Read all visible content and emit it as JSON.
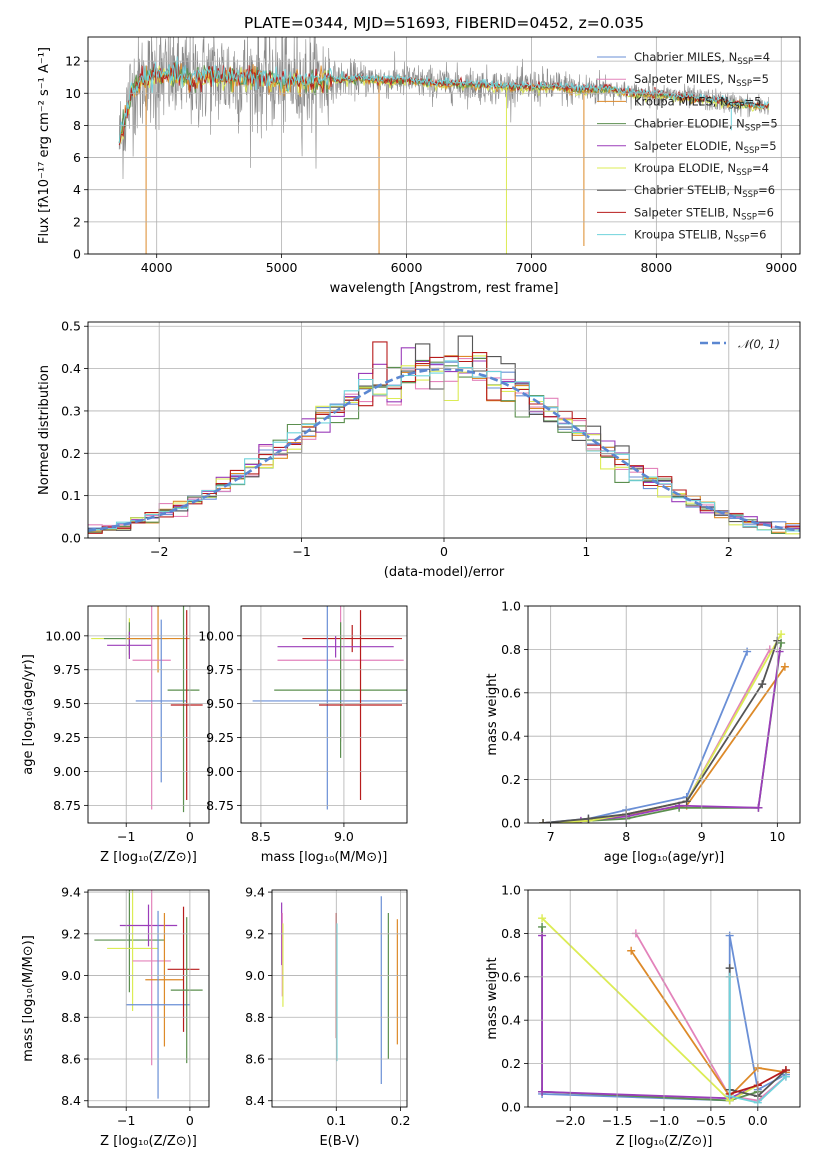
{
  "colors": {
    "series": [
      "#6a8fd6",
      "#e383bb",
      "#dd8a29",
      "#5b8f4f",
      "#9b3dba",
      "#dcec55",
      "#555555",
      "#b71c1c",
      "#6fd3dc"
    ],
    "gaussian": "#5b87d1",
    "grid": "#b0b0b0"
  },
  "chart_data": [
    {
      "id": "spectrum",
      "type": "line",
      "title": "PLATE=0344, MJD=51693, FIBERID=0452, z=0.035",
      "xlabel": "wavelength [Angstrom, rest frame]",
      "ylabel": "Flux [fλ10⁻¹⁷ erg cm⁻² s⁻¹ A⁻¹]",
      "xlim": [
        3450,
        9150
      ],
      "ylim": [
        0,
        13.5
      ],
      "xticks": [
        "4000",
        "5000",
        "6000",
        "7000",
        "8000",
        "9000"
      ],
      "yticks": [
        "0",
        "2",
        "4",
        "6",
        "8",
        "10",
        "12"
      ],
      "legend_position": "upper-right",
      "legend": [
        {
          "label": "Chabrier MILES, N",
          "sub": "SSP",
          "suffix": "=4"
        },
        {
          "label": "Salpeter MILES, N",
          "sub": "SSP",
          "suffix": "=5"
        },
        {
          "label": "Kroupa MILES, N",
          "sub": "SSP",
          "suffix": "=5"
        },
        {
          "label": "Chabrier ELODIE, N",
          "sub": "SSP",
          "suffix": "=5"
        },
        {
          "label": "Salpeter ELODIE, N",
          "sub": "SSP",
          "suffix": "=5"
        },
        {
          "label": "Kroupa ELODIE, N",
          "sub": "SSP",
          "suffix": "=4"
        },
        {
          "label": "Chabrier STELIB, N",
          "sub": "SSP",
          "suffix": "=6"
        },
        {
          "label": "Salpeter STELIB, N",
          "sub": "SSP",
          "suffix": "=6"
        },
        {
          "label": "Kroupa STELIB, N",
          "sub": "SSP",
          "suffix": "=6"
        }
      ],
      "continuum": {
        "x": [
          3700,
          3800,
          3900,
          4000,
          4100,
          4200,
          4300,
          4400,
          4600,
          4800,
          5000,
          5200,
          5400,
          5600,
          5800,
          6000,
          6200,
          6400,
          6600,
          6800,
          7000,
          7200,
          7400,
          7600,
          7800,
          8000,
          8200,
          8400,
          8600,
          8800
        ],
        "y": [
          7.0,
          10.2,
          10.8,
          11.0,
          11.1,
          11.0,
          10.8,
          11.1,
          11.0,
          10.9,
          10.8,
          10.7,
          10.8,
          10.9,
          10.8,
          10.8,
          10.6,
          10.6,
          10.5,
          10.4,
          10.4,
          10.4,
          10.2,
          10.3,
          10.0,
          9.9,
          9.8,
          9.6,
          9.4,
          9.2
        ]
      },
      "spikes": [
        {
          "x": 3915,
          "y": 0.0,
          "series": 2
        },
        {
          "x": 5780,
          "y": 0.0,
          "series": 2
        },
        {
          "x": 6800,
          "y": 0.0,
          "series": 5
        },
        {
          "x": 7420,
          "y": 0.5,
          "series": 2
        },
        {
          "x": 8600,
          "y": 7.7,
          "series": 8
        }
      ]
    },
    {
      "id": "residuals",
      "type": "histogram",
      "xlabel": "(data-model)/error",
      "ylabel": "Normed distribution",
      "xlim": [
        -2.5,
        2.5
      ],
      "ylim": [
        0,
        0.51
      ],
      "xticks": [
        "−2",
        "−1",
        "0",
        "1",
        "2"
      ],
      "yticks": [
        "0.0",
        "0.1",
        "0.2",
        "0.3",
        "0.4",
        "0.5"
      ],
      "bin_width": 0.1,
      "reference_label": "𝒩(0, 1)",
      "legend_position": "upper-right"
    },
    {
      "id": "age-vs-z",
      "type": "errorbar",
      "xlabel": "Z [log₁₀(Z/Z⊙)]",
      "ylabel": "age  [log₁₀(age/yr)]",
      "xlim": [
        -1.6,
        0.3
      ],
      "ylim": [
        8.62,
        10.22
      ],
      "xticks": [
        "−1",
        "0"
      ],
      "yticks": [
        "8.75",
        "9.00",
        "9.25",
        "9.50",
        "9.75",
        "10.00"
      ],
      "points": [
        {
          "x": -0.95,
          "y": 9.98,
          "xerr": 0.6,
          "yerr": 0.15,
          "series": 5
        },
        {
          "x": -0.95,
          "y": 9.98,
          "xerr": 0.4,
          "yerr": 0.12,
          "series": 3
        },
        {
          "x": -0.95,
          "y": 9.93,
          "xerr": 0.35,
          "yerr": 0.1,
          "series": 4
        },
        {
          "x": -0.5,
          "y": 9.98,
          "xerr": 0.5,
          "yerr": 0.25,
          "series": 2
        },
        {
          "x": -0.6,
          "y": 9.82,
          "xerr": 0.3,
          "yerr": 1.1,
          "series": 1
        },
        {
          "x": -0.45,
          "y": 9.52,
          "xerr": 0.4,
          "yerr": 0.6,
          "series": 0
        },
        {
          "x": -0.1,
          "y": 9.6,
          "xerr": 0.25,
          "yerr": 0.9,
          "series": 3
        },
        {
          "x": -0.05,
          "y": 9.49,
          "xerr": 0.25,
          "yerr": 0.7,
          "series": 7
        }
      ]
    },
    {
      "id": "age-vs-mass",
      "type": "errorbar",
      "xlabel": "mass [log₁₀(M/M⊙)]",
      "ylabel": "",
      "xlim": [
        8.38,
        9.38
      ],
      "ylim": [
        8.62,
        10.22
      ],
      "xticks": [
        "8.5",
        "9.0"
      ],
      "yticks": [
        "8.75",
        "9.00",
        "9.25",
        "9.50",
        "9.75",
        "10.00"
      ],
      "points": [
        {
          "x": 9.05,
          "y": 9.98,
          "xerr": 0.3,
          "yerr": 0.1,
          "series": 7
        },
        {
          "x": 8.95,
          "y": 9.92,
          "xerr": 0.35,
          "yerr": 0.08,
          "series": 4
        },
        {
          "x": 8.98,
          "y": 9.82,
          "xerr": 0.38,
          "yerr": 0.6,
          "series": 1
        },
        {
          "x": 8.98,
          "y": 9.6,
          "xerr": 0.4,
          "yerr": 0.5,
          "series": 3
        },
        {
          "x": 8.9,
          "y": 9.52,
          "xerr": 0.45,
          "yerr": 0.8,
          "series": 0
        },
        {
          "x": 9.1,
          "y": 9.49,
          "xerr": 0.25,
          "yerr": 0.7,
          "series": 7
        }
      ]
    },
    {
      "id": "mass-weight-vs-age",
      "type": "line",
      "xlabel": "age  [log₁₀(age/yr)]",
      "ylabel": "mass weight",
      "xlim": [
        6.7,
        10.3
      ],
      "ylim": [
        0,
        1.0
      ],
      "xticks": [
        "7",
        "8",
        "9",
        "10"
      ],
      "yticks": [
        "0.0",
        "0.2",
        "0.4",
        "0.6",
        "0.8",
        "1.0"
      ],
      "series": [
        {
          "x": [
            6.9,
            7.5,
            8.0,
            8.8,
            9.6
          ],
          "y": [
            0.0,
            0.02,
            0.06,
            0.12,
            0.79
          ],
          "color": 0
        },
        {
          "x": [
            6.9,
            7.5,
            8.0,
            8.8,
            9.9
          ],
          "y": [
            0.0,
            0.01,
            0.04,
            0.1,
            0.8
          ],
          "color": 1
        },
        {
          "x": [
            6.9,
            7.5,
            8.0,
            8.8,
            10.1
          ],
          "y": [
            0.0,
            0.01,
            0.04,
            0.08,
            0.72
          ],
          "color": 2
        },
        {
          "x": [
            6.9,
            7.5,
            8.0,
            8.7,
            9.75,
            10.05
          ],
          "y": [
            0.0,
            0.01,
            0.02,
            0.07,
            0.07,
            0.83
          ],
          "color": 3
        },
        {
          "x": [
            6.9,
            7.4,
            8.0,
            8.7,
            9.75,
            10.03
          ],
          "y": [
            0.0,
            0.01,
            0.03,
            0.08,
            0.07,
            0.79
          ],
          "color": 4
        },
        {
          "x": [
            6.9,
            7.5,
            8.0,
            8.8,
            10.05
          ],
          "y": [
            0.0,
            0.01,
            0.04,
            0.1,
            0.87
          ],
          "color": 5
        },
        {
          "x": [
            6.9,
            7.5,
            8.0,
            8.8,
            9.8,
            10.0
          ],
          "y": [
            0.0,
            0.02,
            0.04,
            0.1,
            0.64,
            0.84
          ],
          "color": 6
        }
      ]
    },
    {
      "id": "mass-vs-z",
      "type": "errorbar",
      "xlabel": "Z [log₁₀(Z/Z⊙)]",
      "ylabel": "mass [log₁₀(M/M⊙)]",
      "xlim": [
        -1.6,
        0.3
      ],
      "ylim": [
        8.37,
        9.41
      ],
      "xticks": [
        "−1",
        "0"
      ],
      "yticks": [
        "8.4",
        "8.6",
        "8.8",
        "9.0",
        "9.2",
        "9.4"
      ],
      "points": [
        {
          "x": -0.95,
          "y": 9.17,
          "xerr": 0.55,
          "yerr": 0.25,
          "series": 3
        },
        {
          "x": -0.9,
          "y": 9.13,
          "xerr": 0.4,
          "yerr": 0.3,
          "series": 5
        },
        {
          "x": -0.65,
          "y": 9.24,
          "xerr": 0.45,
          "yerr": 0.1,
          "series": 4
        },
        {
          "x": -0.6,
          "y": 9.07,
          "xerr": 0.3,
          "yerr": 0.5,
          "series": 1
        },
        {
          "x": -0.4,
          "y": 8.98,
          "xerr": 0.3,
          "yerr": 0.32,
          "series": 2
        },
        {
          "x": -0.5,
          "y": 8.86,
          "xerr": 0.5,
          "yerr": 0.45,
          "series": 0
        },
        {
          "x": -0.1,
          "y": 9.03,
          "xerr": 0.25,
          "yerr": 0.3,
          "series": 7
        },
        {
          "x": -0.05,
          "y": 8.93,
          "xerr": 0.25,
          "yerr": 0.35,
          "series": 3
        }
      ]
    },
    {
      "id": "mass-vs-ebv",
      "type": "errorbar",
      "xlabel": "E(B-V)",
      "ylabel": "",
      "xlim": [
        0.0,
        0.21
      ],
      "ylim": [
        8.37,
        9.41
      ],
      "xticks": [
        "0.1",
        "0.2"
      ],
      "yticks": [
        "8.4",
        "8.6",
        "8.8",
        "9.0",
        "9.2",
        "9.4"
      ],
      "points": [
        {
          "x": 0.015,
          "y": 9.2,
          "yerr": 0.15,
          "series": 4
        },
        {
          "x": 0.016,
          "y": 9.1,
          "yerr": 0.2,
          "series": 1
        },
        {
          "x": 0.017,
          "y": 9.05,
          "yerr": 0.2,
          "series": 5
        },
        {
          "x": 0.1,
          "y": 9.0,
          "yerr": 0.3,
          "series": 7
        },
        {
          "x": 0.101,
          "y": 8.92,
          "yerr": 0.33,
          "series": 8
        },
        {
          "x": 0.17,
          "y": 8.93,
          "yerr": 0.45,
          "series": 0
        },
        {
          "x": 0.181,
          "y": 8.95,
          "yerr": 0.35,
          "series": 3
        },
        {
          "x": 0.195,
          "y": 8.97,
          "yerr": 0.3,
          "series": 2
        }
      ]
    },
    {
      "id": "mass-weight-vs-z",
      "type": "line",
      "xlabel": "Z [log₁₀(Z/Z⊙)]",
      "ylabel": "mass weight",
      "xlim": [
        -2.45,
        0.45
      ],
      "ylim": [
        0,
        1.0
      ],
      "xticks": [
        "−2.0",
        "−1.5",
        "−1.0",
        "−0.5",
        "0.0"
      ],
      "yticks": [
        "0.0",
        "0.2",
        "0.4",
        "0.6",
        "0.8",
        "1.0"
      ],
      "series": [
        {
          "x": [
            -2.3,
            -0.3,
            -0.3,
            0.0,
            0.3
          ],
          "y": [
            0.06,
            0.03,
            0.79,
            0.08,
            0.15
          ],
          "color": 0
        },
        {
          "x": [
            -1.3,
            -0.3,
            0.0,
            0.3
          ],
          "y": [
            0.8,
            0.05,
            0.03,
            0.14
          ],
          "color": 1
        },
        {
          "x": [
            -1.35,
            -0.3,
            0.0,
            0.3
          ],
          "y": [
            0.72,
            0.05,
            0.18,
            0.16
          ],
          "color": 2
        },
        {
          "x": [
            -2.3,
            -2.3,
            -0.3,
            0.0
          ],
          "y": [
            0.83,
            0.07,
            0.03,
            0.07
          ],
          "color": 3
        },
        {
          "x": [
            -2.3,
            -2.3,
            -0.3,
            0.0
          ],
          "y": [
            0.79,
            0.07,
            0.04,
            0.1
          ],
          "color": 4
        },
        {
          "x": [
            -2.3,
            -0.3,
            0.0
          ],
          "y": [
            0.87,
            0.03,
            0.1
          ],
          "color": 5
        },
        {
          "x": [
            -0.3,
            -0.3,
            0.0,
            0.3
          ],
          "y": [
            0.64,
            0.08,
            0.05,
            0.17
          ],
          "color": 6
        },
        {
          "x": [
            -0.3,
            0.0,
            0.3
          ],
          "y": [
            0.06,
            0.1,
            0.17
          ],
          "color": 7
        },
        {
          "x": [
            -0.3,
            -0.3,
            0.0,
            0.3
          ],
          "y": [
            0.6,
            0.05,
            0.02,
            0.14
          ],
          "color": 8
        }
      ]
    }
  ]
}
